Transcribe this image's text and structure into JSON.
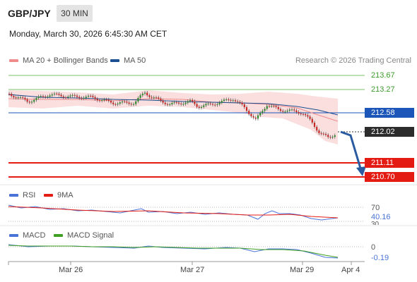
{
  "header": {
    "symbol": "GBP/JPY",
    "timeframe": "30 MIN",
    "datetime": "Monday, March 30, 2026 6:45:30 AM CET"
  },
  "legend": {
    "ma20_label": "MA 20 + Bollinger Bands",
    "ma20_color": "#f08b8b",
    "ma50_label": "MA 50",
    "ma50_color": "#1b4f91"
  },
  "research": "Research © 2026 Trading Central",
  "levels": [
    {
      "value": "213.67",
      "style": "plain"
    },
    {
      "value": "213.27",
      "style": "plain"
    },
    {
      "value": "212.58",
      "style": "blue"
    },
    {
      "value": "212.02",
      "style": "dark"
    },
    {
      "value": "211.11",
      "style": "red"
    },
    {
      "value": "210.70",
      "style": "red"
    }
  ],
  "rsi": {
    "label": "RSI",
    "ma_label": "9MA",
    "rsi_color": "#4a73d8",
    "ma_color": "#e41b13",
    "level_70": "70",
    "level_30": "30",
    "current": "40.16"
  },
  "macd": {
    "label": "MACD",
    "signal_label": "MACD Signal",
    "macd_color": "#4a73d8",
    "signal_color": "#3f9f22",
    "zero": "0",
    "current": "-0.19"
  },
  "x_axis": [
    "Mar 26",
    "Mar 27",
    "Mar 29",
    "Apr 4"
  ],
  "colors": {
    "bullish": "#2e8b2e",
    "bearish": "#c62828",
    "resistance": "#7cc36a",
    "pivot": "#1b56b8",
    "support": "#e41b13",
    "forecast_arrow": "#2a5aa0"
  }
}
